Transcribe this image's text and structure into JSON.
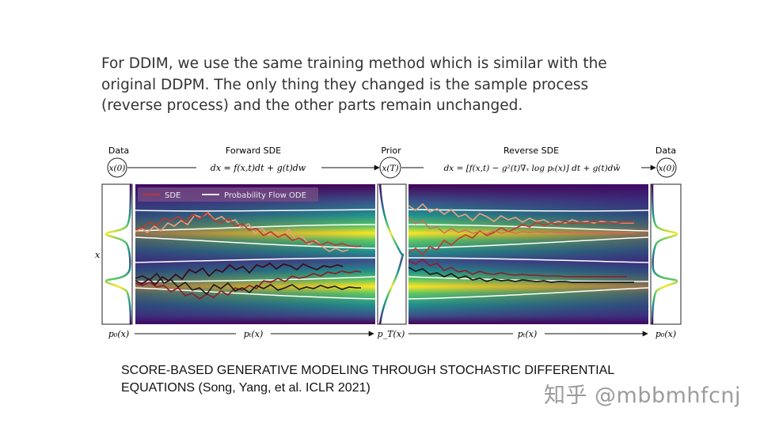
{
  "intro": {
    "lines": [
      "For DDIM, we use the same training method which is similar with the",
      "original DDPM. The only thing they changed is the sample process",
      "(reverse process) and the other parts remain unchanged."
    ]
  },
  "figure": {
    "data_left": "Data",
    "forward_title": "Forward SDE",
    "prior": "Prior",
    "reverse_title": "Reverse SDE",
    "data_right": "Data",
    "x0_left": "x(0)",
    "xT": "x(T)",
    "x0_right": "x(0)",
    "forward_eq": "dx = f(x,t)dt + g(t)dw",
    "reverse_eq": "dx = [f(x,t) − g²(t)∇ₓ log pₜ(x)] dt + g(t)dw̄",
    "y_axis_label": "x",
    "legend_sde": "SDE",
    "legend_ode": "Probability Flow ODE",
    "bottom_p0_left": "p₀(x)",
    "bottom_pt_forward": "pₜ(x)",
    "bottom_pT": "p_T(x)",
    "bottom_pt_reverse": "pₜ(x)",
    "bottom_p0_right": "p₀(x)"
  },
  "caption": {
    "line1": "SCORE-BASED GENERATIVE MODELING THROUGH STOCHASTIC DIFFERENTIAL",
    "line2": "EQUATIONS (Song, Yang, et al. ICLR 2021)"
  },
  "watermark": "知乎 @mbbmhfcnj",
  "colors": {
    "viridis_dark": "#440154",
    "viridis_mid": "#21918c",
    "viridis_bright": "#fde725",
    "sde_line": "#c0392b",
    "ode_line": "#ffffff"
  }
}
